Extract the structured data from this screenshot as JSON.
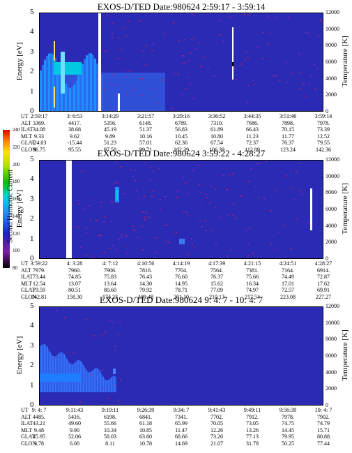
{
  "colorbar": {
    "label": "Second Harmonic Current",
    "ticks": [
      "80",
      "100",
      "120",
      "140",
      "160",
      "180",
      "200",
      "220",
      "240"
    ]
  },
  "chart_data": [
    {
      "type": "heatmap",
      "title": "EXOS-D/TED   Date:980624   2:59:17 - 3:59:14",
      "ylabel": "Energy [eV]",
      "y2label": "Temperature [K]",
      "ylim": [
        0,
        5
      ],
      "y2lim": [
        0,
        12000
      ],
      "yticks": [
        "0",
        "1",
        "2",
        "3",
        "4",
        "5"
      ],
      "y2ticks": [
        "0",
        "2000",
        "4000",
        "6000",
        "8000",
        "10000",
        "12000"
      ],
      "ephemeris": {
        "rows": [
          "UT",
          "ALT",
          "ILAT",
          "MLT",
          "GLAT",
          "GLON"
        ],
        "columns": [
          [
            "2:59:17",
            "3369.",
            "34.08",
            "9.33",
            "-24.03",
            "96.75"
          ],
          [
            "3: 6:53",
            "4417.",
            "38.68",
            "9.62",
            "-15.44",
            "95.55"
          ],
          [
            "3:14:29",
            "5356.",
            "45.19",
            "9.89",
            "51.23",
            "97.58"
          ],
          [
            "3:21:57",
            "6148.",
            "51.37",
            "10.16",
            "57.01",
            "99.71"
          ],
          [
            "3:29:16",
            "6789.",
            "56.83",
            "10.45",
            "62.36",
            "102.39"
          ],
          [
            "3:36:52",
            "7310.",
            "61.89",
            "10.80",
            "67.54",
            "106.39"
          ],
          [
            "3:44:35",
            "7686.",
            "66.43",
            "11.23",
            "72.37",
            "112.89"
          ],
          [
            "3:51:46",
            "7898.",
            "70.15",
            "11.77",
            "76.37",
            "123.24"
          ],
          [
            "3:59:14",
            "7978.",
            "73.39",
            "12.52",
            "79.55",
            "142.36"
          ]
        ]
      }
    },
    {
      "type": "heatmap",
      "title": "EXOS-D/TED   Date:980624   3:59:22 - 4:28:27",
      "ylabel": "Energy [eV]",
      "y2label": "Temperature [K]",
      "ylim": [
        0,
        5
      ],
      "y2lim": [
        0,
        12000
      ],
      "yticks": [
        "0",
        "1",
        "2",
        "3",
        "4",
        "5"
      ],
      "y2ticks": [
        "0",
        "2000",
        "4000",
        "6000",
        "8000",
        "10000",
        "12000"
      ],
      "ephemeris": {
        "rows": [
          "UT",
          "ALT",
          "ILAT",
          "MLT",
          "GLAT",
          "GLON"
        ],
        "columns": [
          [
            "3:59:22",
            "7979.",
            "73.44",
            "12.54",
            "79.59",
            "142.81"
          ],
          [
            "4: 3:28",
            "7960.",
            "74.85",
            "13.07",
            "80.51",
            "158.30"
          ],
          [
            "4: 7:12",
            "7906.",
            "75.83",
            "13.64",
            "80.60",
            "174.23"
          ],
          [
            "4:10:56",
            "7816.",
            "76.43",
            "14.30",
            "79.92",
            "189.48"
          ],
          [
            "4:14:19",
            "7704.",
            "76.60",
            "14.95",
            "78.71",
            "201.10"
          ],
          [
            "4:17:39",
            "7564.",
            "76.37",
            "15.62",
            "77.09",
            "210.13"
          ],
          [
            "4:21:15",
            "7381.",
            "75.66",
            "16.34",
            "74.97",
            "217.54"
          ],
          [
            "4:24:51",
            "7164.",
            "74.49",
            "17.01",
            "72.57",
            "223.08"
          ],
          [
            "4:28:27",
            "6914.",
            "72.87",
            "17.62",
            "69.91",
            "227.27"
          ]
        ]
      }
    },
    {
      "type": "heatmap",
      "title": "EXOS-D/TED   Date:980624   9: 4: 7 - 10: 4: 7",
      "ylabel": "Energy [eV]",
      "y2label": "Temperature [K]",
      "ylim": [
        0,
        5
      ],
      "y2lim": [
        0,
        12000
      ],
      "yticks": [
        "0",
        "1",
        "2",
        "3",
        "4",
        "5"
      ],
      "y2ticks": [
        "0",
        "2000",
        "4000",
        "6000",
        "8000",
        "10000",
        "12000"
      ],
      "ephemeris": {
        "rows": [
          "UT",
          "ALT",
          "ILAT",
          "MLT",
          "GLAT",
          "GLON"
        ],
        "columns": [
          [
            "9: 4: 7",
            "4485.",
            "43.21",
            "9.48",
            "45.95",
            "3.78"
          ],
          [
            "9:11:43",
            "5416.",
            "49.60",
            "9.90",
            "52.06",
            "6.00"
          ],
          [
            "9:19:11",
            "6198.",
            "55.66",
            "10.34",
            "58.03",
            "8.11"
          ],
          [
            "9:26:39",
            "6841.",
            "61.18",
            "10.85",
            "63.60",
            "10.78"
          ],
          [
            "9:34: 7",
            "7341.",
            "65.99",
            "11.47",
            "68.66",
            "14.69"
          ],
          [
            "9:41:43",
            "7702.",
            "70.05",
            "12.26",
            "73.26",
            "21.07"
          ],
          [
            "9:49:11",
            "7912.",
            "73.05",
            "13.26",
            "77.13",
            "31.78"
          ],
          [
            "9:56:39",
            "7978.",
            "74.75",
            "14.45",
            "79.95",
            "50.25"
          ],
          [
            "10: 4: 7",
            "7902.",
            "74.79",
            "15.71",
            "80.88",
            "77.44"
          ]
        ]
      }
    }
  ]
}
